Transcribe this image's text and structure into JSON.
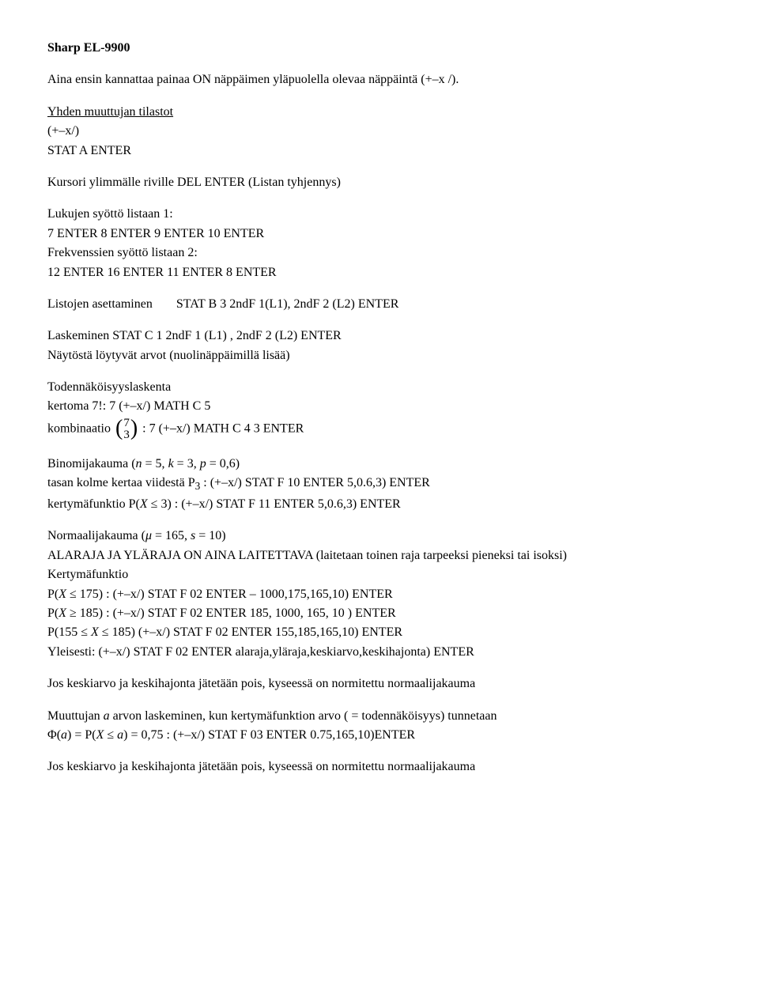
{
  "title": "Sharp EL-9900",
  "intro": "Aina ensin kannattaa painaa ON näppäimen yläpuolella olevaa näppäintä (+–x /).",
  "sec1": {
    "heading": "Yhden muuttujan tilastot",
    "line1": "(+–x/)",
    "line2": "STAT A ENTER",
    "kursori": "Kursori ylimmälle riville DEL ENTER (Listan tyhjennys)",
    "lukujen_label": "Lukujen syöttö listaan 1:",
    "lukujen_val": "7 ENTER 8 ENTER 9 ENTER 10 ENTER",
    "frekv_label": "Frekvenssien syöttö listaan 2:",
    "frekv_val": "12 ENTER 16 ENTER 11 ENTER 8 ENTER"
  },
  "listojen": {
    "label": "Listojen asettaminen",
    "value": "STAT B 3 2ndF 1(L1), 2ndF 2 (L2) ENTER"
  },
  "laskeminen": {
    "l1": "Laskeminen  STAT C 1 2ndF 1 (L1) , 2ndF 2 (L2) ENTER",
    "l2": "Näytöstä löytyvät arvot (nuolinäppäimillä lisää)"
  },
  "toden": {
    "heading": "Todennäköisyyslaskenta",
    "kertoma": "kertoma 7!: 7 (+–x/) MATH C 5",
    "komb_pre": "kombinaatio ",
    "komb_top": "7",
    "komb_bot": "3",
    "komb_post": ": 7 (+–x/) MATH C 4 3 ENTER"
  },
  "binomi": {
    "heading_pre": "Binomijakauma (",
    "heading_n": "n",
    "heading_mid1": " = 5, ",
    "heading_k": "k",
    "heading_mid2": " = 3, ",
    "heading_p": "p",
    "heading_end": " = 0,6)",
    "tasan_pre": "tasan kolme kertaa viidestä P",
    "tasan_sub": "3",
    "tasan_post": ": (+–x/) STAT F 10 ENTER 5,0.6,3) ENTER",
    "kerty_pre": "kertymäfunktio P",
    "kerty_paren": "(X ≤ 3)",
    "kerty_post": ": (+–x/) STAT F 11 ENTER 5,0.6,3) ENTER"
  },
  "normaali": {
    "heading_pre": "Normaalijakauma (",
    "mu": "μ",
    "eq1": " = 165,  ",
    "s": "s",
    "eq2": " = 10)",
    "alaraja": "ALARAJA JA YLÄRAJA ON AINA LAITETTAVA (laitetaan toinen raja tarpeeksi pieneksi tai isoksi)",
    "kerty_label": "Kertymäfunktio",
    "p1_pre": "P(",
    "p1_x": "X",
    "p1_rest": " ≤ 175) : (+–x/) STAT F 02 ENTER  – 1000,175,165,10) ENTER",
    "p2_pre": "P(",
    "p2_x": "X",
    "p2_rest": " ≥ 185) : (+–x/) STAT F 02 ENTER 185, 1000, 165, 10 ) ENTER",
    "p3_pre": "P(155 ≤ ",
    "p3_x": "X",
    "p3_rest": " ≤ 185) (+–x/) STAT F 02 ENTER 155,185,165,10) ENTER",
    "yleisesti": "Yleisesti: (+–x/) STAT F 02 ENTER alaraja,yläraja,keskiarvo,keskihajonta) ENTER"
  },
  "jos1": "Jos keskiarvo ja keskihajonta jätetään pois, kyseessä on normitettu normaalijakauma",
  "muuttujan": {
    "line1_pre": "Muuttujan ",
    "line1_a": "a",
    "line1_post": " arvon laskeminen, kun kertymäfunktion arvo ( = todennäköisyys) tunnetaan",
    "phi_pre": "Φ(",
    "phi_a1": "a",
    "phi_mid": ") = P(",
    "phi_x": "X",
    "phi_mid2": " ≤ ",
    "phi_a2": "a",
    "phi_rest": ") = 0,75 : (+–x/) STAT F 03 ENTER 0.75,165,10)ENTER"
  },
  "jos2": "Jos keskiarvo ja keskihajonta jätetään pois, kyseessä on normitettu normaalijakauma"
}
